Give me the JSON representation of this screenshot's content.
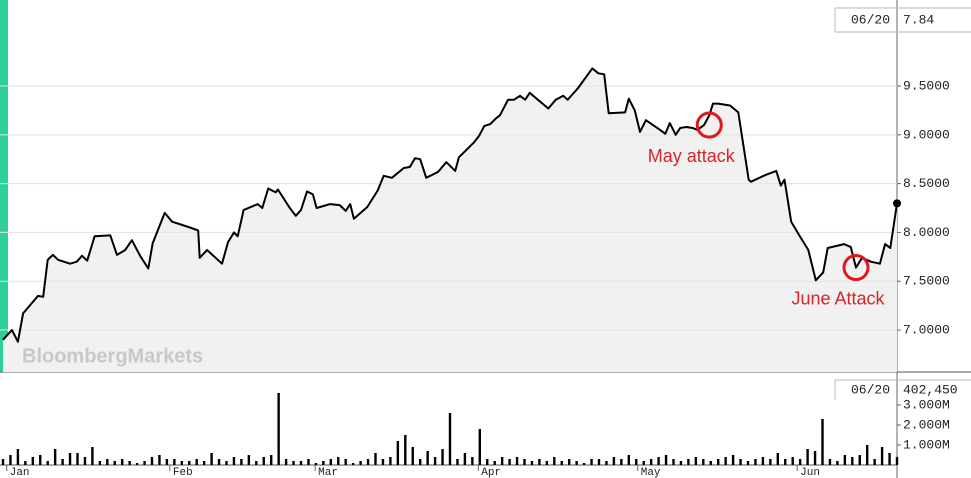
{
  "watermark": "BloombergMarkets",
  "chart_data": [
    {
      "type": "line",
      "last_date": "06/20",
      "color": "#000000",
      "fill": "#f1f1f1",
      "grid": true,
      "x": [
        0,
        1.2,
        2.0,
        2.7,
        4.7,
        5.4,
        6.0,
        6.7,
        7.4,
        9.0,
        9.9,
        10.6,
        11.3,
        12.3,
        14.4,
        15.3,
        16.4,
        17.3,
        18.4,
        19.5,
        20.1,
        21.7,
        22.7,
        25.1,
        26.2,
        26.4,
        27.4,
        29.4,
        30.2,
        31.0,
        31.5,
        32.3,
        34.2,
        34.8,
        35.6,
        36.6,
        36.9,
        38.5,
        39.3,
        40.0,
        40.8,
        41.6,
        42.1,
        43.9,
        45.2,
        46.0,
        46.6,
        47.1,
        48.9,
        50.3,
        51.1,
        52.2,
        53.8,
        54.6,
        55.3,
        56.0,
        56.8,
        58.4,
        59.5,
        60.7,
        61.2,
        63.2,
        63.9,
        64.6,
        65.4,
        66.2,
        66.7,
        67.8,
        68.6,
        69.4,
        70.1,
        70.7,
        72.1,
        73.2,
        74.2,
        75.2,
        75.8,
        77.2,
        79.1,
        79.9,
        80.7,
        81.3,
        83.5,
        84.0,
        84.8,
        85.5,
        86.3,
        88.2,
        88.9,
        89.5,
        90.3,
        90.9,
        91.7,
        92.6,
        93.2,
        94.1,
        94.8,
        95.3,
        96.0,
        97.6,
        98.7,
        100.1,
        100.4,
        102.4,
        103.8,
        104.4,
        104.9,
        105.8,
        106.8,
        108.1,
        109.1,
        110.1,
        110.7,
        112.9,
        113.8,
        114.5,
        115.3,
        116.5,
        117.7,
        118.4,
        119.1,
        120.0
      ],
      "values": [
        6.9,
        7.0,
        6.88,
        7.17,
        7.35,
        7.34,
        7.72,
        7.77,
        7.72,
        7.68,
        7.7,
        7.76,
        7.71,
        7.96,
        7.97,
        7.77,
        7.82,
        7.92,
        7.76,
        7.63,
        7.89,
        8.2,
        8.11,
        8.05,
        8.02,
        7.74,
        7.82,
        7.68,
        7.9,
        8.0,
        7.96,
        8.23,
        8.29,
        8.25,
        8.45,
        8.41,
        8.44,
        8.25,
        8.17,
        8.23,
        8.42,
        8.39,
        8.25,
        8.29,
        8.28,
        8.22,
        8.29,
        8.14,
        8.26,
        8.43,
        8.58,
        8.56,
        8.66,
        8.67,
        8.76,
        8.75,
        8.56,
        8.62,
        8.72,
        8.63,
        8.77,
        8.92,
        8.99,
        9.09,
        9.11,
        9.17,
        9.2,
        9.36,
        9.36,
        9.4,
        9.36,
        9.43,
        9.34,
        9.27,
        9.36,
        9.4,
        9.36,
        9.48,
        9.68,
        9.63,
        9.62,
        9.22,
        9.23,
        9.37,
        9.25,
        9.03,
        9.15,
        9.05,
        9.01,
        9.12,
        9.0,
        9.07,
        9.08,
        9.07,
        9.05,
        9.1,
        9.2,
        9.32,
        9.32,
        9.3,
        9.23,
        8.54,
        8.52,
        8.59,
        8.63,
        8.48,
        8.54,
        8.11,
        7.98,
        7.82,
        7.51,
        7.59,
        7.84,
        7.88,
        7.85,
        7.64,
        7.74,
        7.7,
        7.68,
        7.88,
        7.84,
        8.2975
      ],
      "xlim": [
        0,
        120
      ],
      "ylim": [
        6.57,
        10.33
      ],
      "yticks": [
        {
          "value": 7,
          "label": "7.0000"
        },
        {
          "value": 7.5,
          "label": "7.5000"
        },
        {
          "value": 8,
          "label": "8.0000"
        },
        {
          "value": 8.5,
          "label": "8.5000"
        },
        {
          "value": 9,
          "label": "9.0000"
        },
        {
          "value": 9.5,
          "label": "9.5000"
        }
      ],
      "annotations": [
        {
          "text": "May attack",
          "x": 94.8,
          "y": 9.1,
          "color": "#e0181e"
        },
        {
          "text": "June Attack",
          "x": 114.5,
          "y": 7.64,
          "color": "#e0181e"
        }
      ]
    },
    {
      "type": "bar",
      "last_date": "06/20",
      "latest_label": "402,450",
      "color": "#000000",
      "values": [
        300000,
        500000,
        800000,
        200000,
        400000,
        500000,
        200000,
        800000,
        300000,
        600000,
        600000,
        400000,
        900000,
        200000,
        300000,
        200000,
        300000,
        200000,
        100000,
        200000,
        400000,
        500000,
        300000,
        300000,
        200000,
        200000,
        300000,
        200000,
        600000,
        300000,
        200000,
        400000,
        300000,
        500000,
        200000,
        400000,
        500000,
        3600000,
        300000,
        200000,
        200000,
        300000,
        100000,
        200000,
        300000,
        400000,
        300000,
        100000,
        200000,
        300000,
        600000,
        300000,
        400000,
        1200000,
        1500000,
        900000,
        300000,
        700000,
        400000,
        800000,
        2600000,
        300000,
        600000,
        400000,
        1800000,
        300000,
        200000,
        400000,
        300000,
        400000,
        300000,
        200000,
        300000,
        200000,
        400000,
        200000,
        300000,
        200000,
        100000,
        300000,
        300000,
        200000,
        400000,
        300000,
        500000,
        300000,
        200000,
        300000,
        400000,
        500000,
        300000,
        200000,
        300000,
        400000,
        300000,
        200000,
        300000,
        400000,
        500000,
        300000,
        200000,
        300000,
        400000,
        300000,
        600000,
        300000,
        400000,
        300000,
        800000,
        700000,
        2300000,
        300000,
        200000,
        500000,
        400000,
        500000,
        1000000,
        300000,
        900000,
        600000,
        402450
      ],
      "xlim": [
        0,
        120
      ],
      "ylim": [
        0,
        4550000
      ],
      "xticks": [
        {
          "value": 0.5,
          "label": "Jan"
        },
        {
          "value": 22.4,
          "label": "Feb"
        },
        {
          "value": 41.9,
          "label": "Mar"
        },
        {
          "value": 63.8,
          "label": "Apr"
        },
        {
          "value": 85.2,
          "label": "May"
        },
        {
          "value": 106.6,
          "label": "Jun"
        }
      ],
      "yticks": [
        {
          "value": 1000000,
          "label": "1.000M"
        },
        {
          "value": 2000000,
          "label": "2.000M"
        },
        {
          "value": 3000000,
          "label": "3.000M"
        }
      ]
    }
  ]
}
